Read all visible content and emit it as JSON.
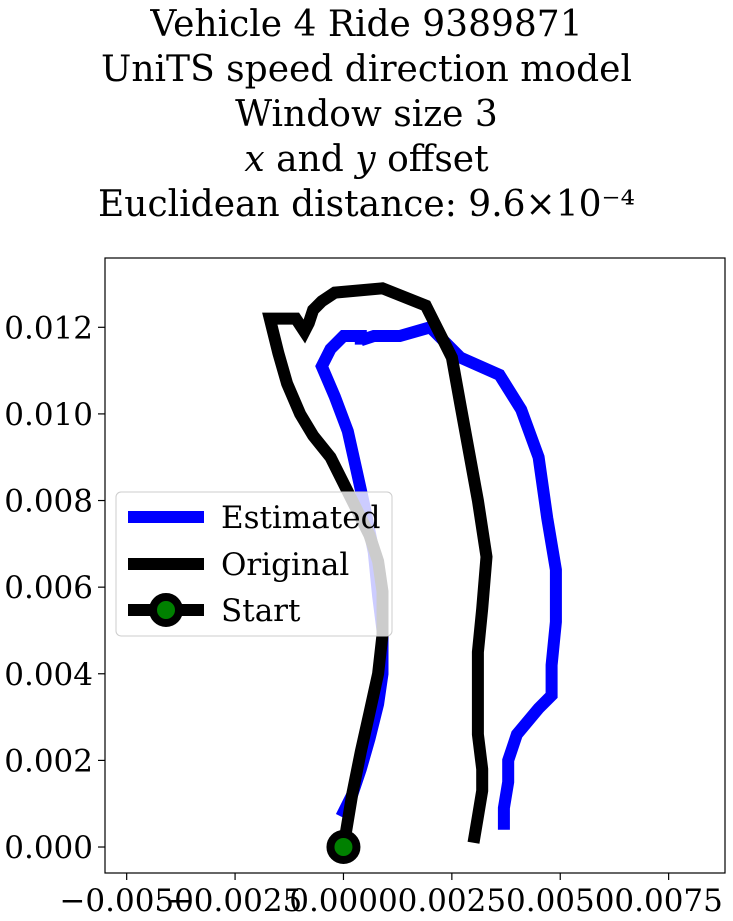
{
  "title_lines": [
    "Vehicle 4 Ride 9389871",
    "UniTS speed direction model",
    "Window size 3",
    "x and y offset",
    "Euclidean distance: 9.6×10⁻⁴"
  ],
  "chart_data": {
    "type": "line",
    "title": "Vehicle 4 Ride 9389871 UniTS speed direction model Window size 3 x and y offset Euclidean distance: 9.6×10⁻⁴",
    "xlabel": "",
    "ylabel": "",
    "xlim": [
      -0.0055,
      0.0088
    ],
    "ylim": [
      -0.0006,
      0.0136
    ],
    "xticks": [
      -0.005,
      -0.0025,
      0.0,
      0.0025,
      0.005,
      0.0075
    ],
    "xtick_labels": [
      "−0.0050",
      "−0.0025",
      "0.0000",
      "0.0025",
      "0.0050",
      "0.0075"
    ],
    "yticks": [
      0.0,
      0.002,
      0.004,
      0.006,
      0.008,
      0.01,
      0.012
    ],
    "ytick_labels": [
      "0.000",
      "0.002",
      "0.004",
      "0.006",
      "0.008",
      "0.010",
      "0.012"
    ],
    "grid": false,
    "legend_position": "center-left",
    "series": [
      {
        "name": "Estimated",
        "color": "#0000ff",
        "x": [
          -5e-05,
          0.0002,
          0.0004,
          0.0006,
          0.0008,
          0.0009,
          0.0009,
          0.0008,
          0.0007,
          0.0005,
          0.0003,
          0.0001,
          -0.0002,
          -0.0005,
          -0.0003,
          0.0,
          0.0004,
          0.0004,
          0.0004,
          0.0007,
          0.0013,
          0.002,
          0.0027,
          0.0036,
          0.0041,
          0.0045,
          0.0047,
          0.0049,
          0.0049,
          0.0048,
          0.0048,
          0.0045,
          0.004,
          0.0038,
          0.0038,
          0.0037,
          0.0037
        ],
        "y": [
          0.0007,
          0.0012,
          0.0018,
          0.0025,
          0.0033,
          0.004,
          0.005,
          0.0058,
          0.0068,
          0.0078,
          0.0087,
          0.0096,
          0.0104,
          0.0111,
          0.0115,
          0.0118,
          0.0118,
          0.0116,
          0.0117,
          0.0118,
          0.0118,
          0.012,
          0.0113,
          0.0109,
          0.0101,
          0.009,
          0.0076,
          0.0064,
          0.0052,
          0.0042,
          0.0035,
          0.0032,
          0.0026,
          0.002,
          0.0015,
          0.0009,
          0.0004
        ]
      },
      {
        "name": "Original",
        "color": "#000000",
        "x": [
          0.0,
          0.0002,
          0.0004,
          0.0006,
          0.0008,
          0.0009,
          0.0009,
          0.0008,
          0.0006,
          0.0003,
          0.0,
          -0.0003,
          -0.0007,
          -0.001,
          -0.0013,
          -0.0015,
          -0.0017,
          -0.0014,
          -0.0011,
          -0.0009,
          -0.0008,
          -0.0007,
          -0.0005,
          -0.0002,
          0.0009,
          0.0019,
          0.0025,
          0.0027,
          0.0029,
          0.0031,
          0.0033,
          0.0032,
          0.0031,
          0.0031,
          0.0031,
          0.0032,
          0.0032,
          0.0031,
          0.003
        ],
        "y": [
          0.0,
          0.0012,
          0.0022,
          0.0031,
          0.004,
          0.0049,
          0.0059,
          0.0066,
          0.0072,
          0.0078,
          0.0084,
          0.009,
          0.0095,
          0.01,
          0.0107,
          0.0114,
          0.0122,
          0.0122,
          0.0122,
          0.0119,
          0.0121,
          0.0124,
          0.0126,
          0.0128,
          0.0129,
          0.0125,
          0.0113,
          0.0102,
          0.0091,
          0.008,
          0.0067,
          0.0055,
          0.0045,
          0.0034,
          0.0026,
          0.0018,
          0.0013,
          0.0007,
          0.0001
        ]
      }
    ],
    "start_point": {
      "name": "Start",
      "x": 0.0,
      "y": 0.0,
      "marker_color": "#008000"
    },
    "legend": [
      "Estimated",
      "Original",
      "Start"
    ]
  }
}
